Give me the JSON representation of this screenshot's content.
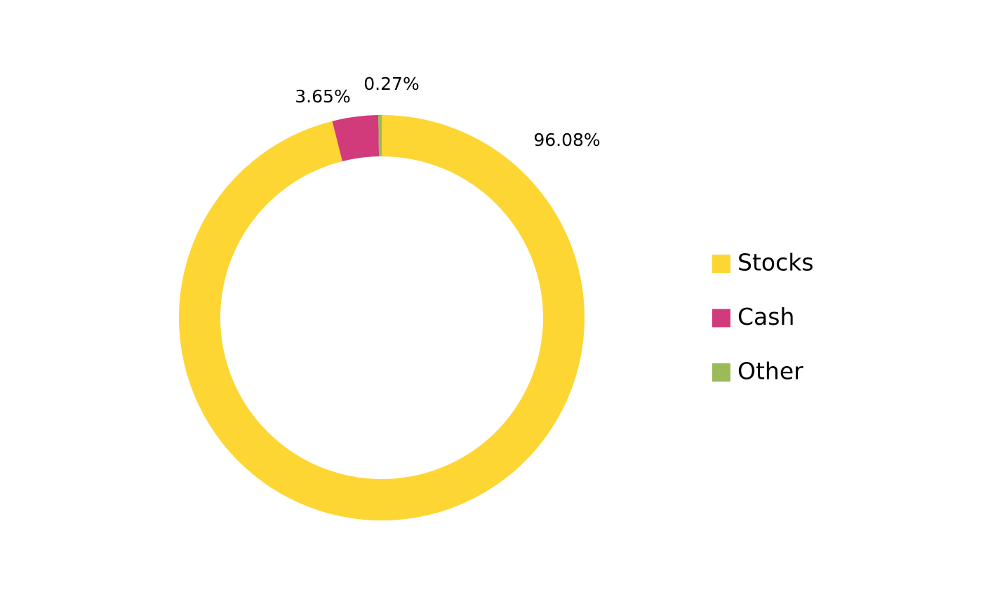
{
  "chart_data": {
    "type": "donut",
    "categories": [
      "Stocks",
      "Cash",
      "Other"
    ],
    "values": [
      96.08,
      3.65,
      0.27
    ],
    "value_labels": [
      "96.08%",
      "3.65%",
      "0.27%"
    ],
    "colors": [
      "#fdd633",
      "#d13b7b",
      "#9bbb59"
    ],
    "legend": "right"
  }
}
